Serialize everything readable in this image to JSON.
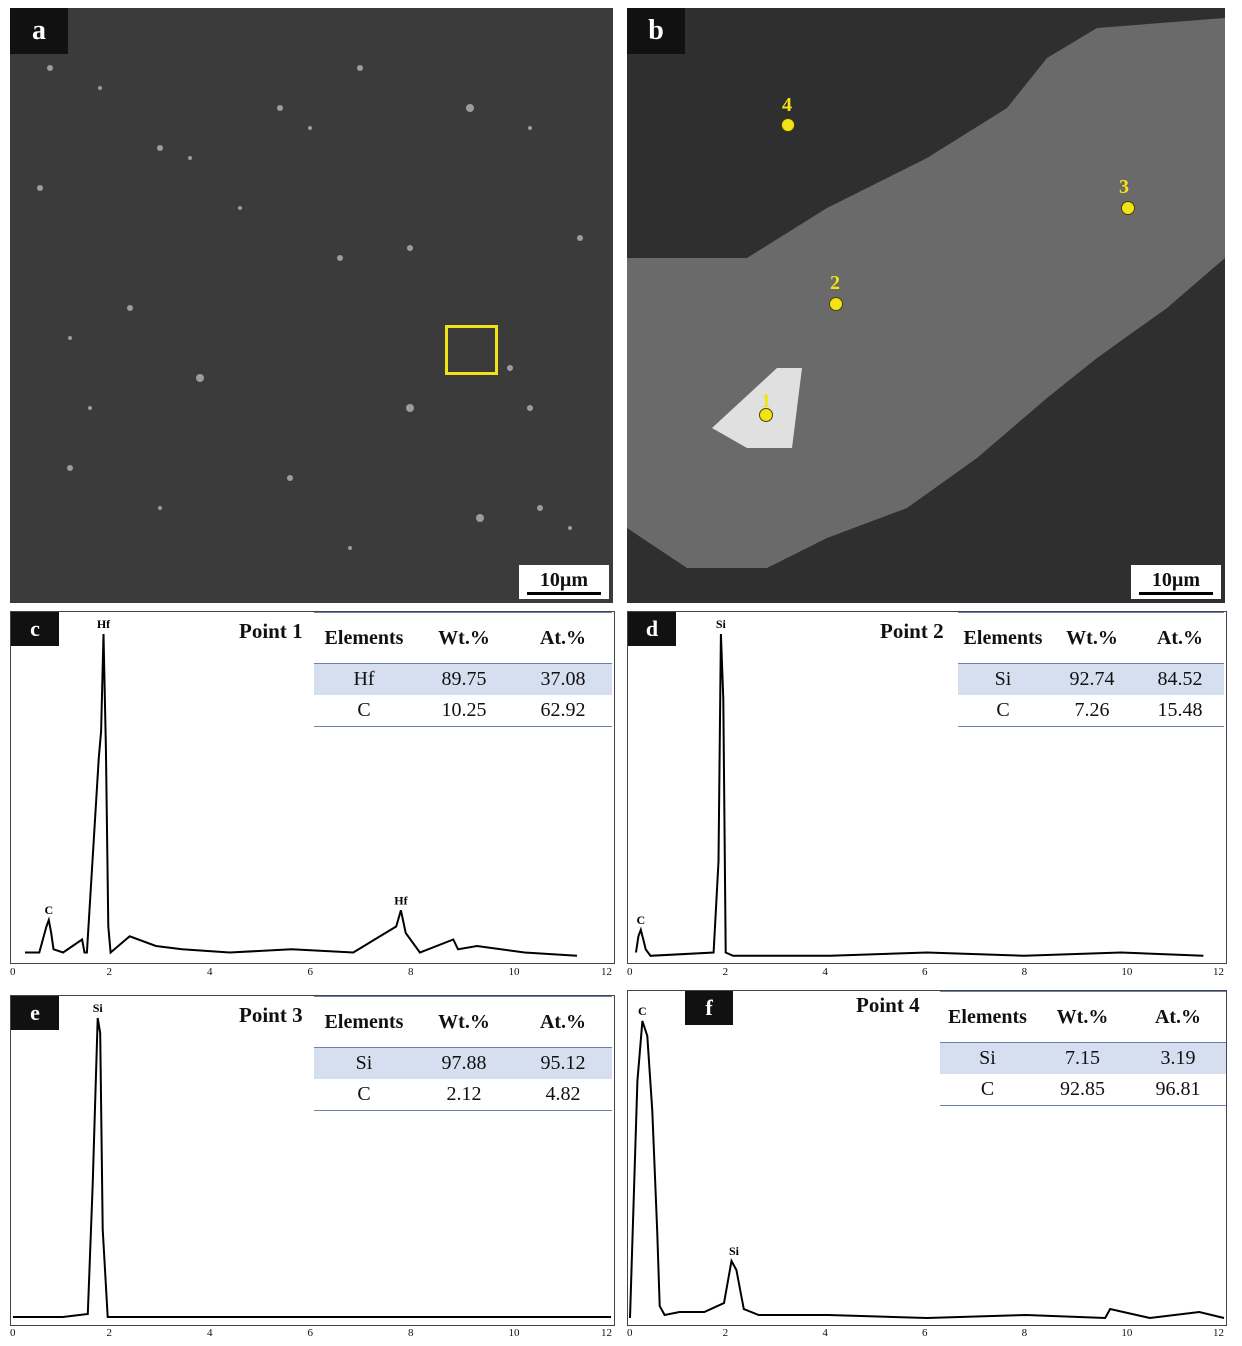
{
  "panels": {
    "a": {
      "letter": "a",
      "scale_label": "10µm"
    },
    "b": {
      "letter": "b",
      "scale_label": "10µm",
      "markers": [
        "1",
        "2",
        "3",
        "4"
      ]
    },
    "c": {
      "letter": "c",
      "point": "Point 1"
    },
    "d": {
      "letter": "d",
      "point": "Point 2"
    },
    "e": {
      "letter": "e",
      "point": "Point 3"
    },
    "f": {
      "letter": "f",
      "point": "Point 4"
    }
  },
  "table_headers": {
    "elements": "Elements",
    "wt": "Wt.%",
    "at": "At.%"
  },
  "tables": {
    "c": [
      {
        "el": "Hf",
        "wt": "89.75",
        "at": "37.08"
      },
      {
        "el": "C",
        "wt": "10.25",
        "at": "62.92"
      }
    ],
    "d": [
      {
        "el": "Si",
        "wt": "92.74",
        "at": "84.52"
      },
      {
        "el": "C",
        "wt": "7.26",
        "at": "15.48"
      }
    ],
    "e": [
      {
        "el": "Si",
        "wt": "97.88",
        "at": "95.12"
      },
      {
        "el": "C",
        "wt": "2.12",
        "at": "4.82"
      }
    ],
    "f": [
      {
        "el": "Si",
        "wt": "7.15",
        "at": "3.19"
      },
      {
        "el": "C",
        "wt": "92.85",
        "at": "96.81"
      }
    ]
  },
  "chart_data": [
    {
      "type": "line",
      "panel": "c",
      "xlim": [
        0,
        12
      ],
      "ticks": [
        "0",
        "2",
        "4",
        "6",
        "8",
        "10",
        "12"
      ],
      "peak_labels": [
        {
          "label": "C",
          "x": 0.5
        },
        {
          "label": "Hf",
          "x": 1.65
        },
        {
          "label": "Hf",
          "x": 7.9
        }
      ],
      "x": [
        0,
        0.3,
        0.45,
        0.5,
        0.55,
        0.6,
        0.8,
        1.2,
        1.25,
        1.3,
        1.55,
        1.6,
        1.65,
        1.7,
        1.75,
        1.8,
        2.2,
        2.75,
        3.3,
        4.3,
        5.6,
        6.9,
        7.8,
        7.9,
        8.0,
        8.3,
        9.0,
        9.1,
        9.5,
        10.5,
        11.6
      ],
      "y": [
        0.02,
        0.02,
        0.1,
        0.12,
        0.08,
        0.03,
        0.02,
        0.06,
        0.02,
        0.02,
        0.62,
        0.7,
        1.0,
        0.65,
        0.1,
        0.02,
        0.07,
        0.04,
        0.03,
        0.02,
        0.03,
        0.02,
        0.1,
        0.15,
        0.08,
        0.02,
        0.06,
        0.03,
        0.04,
        0.02,
        0.01
      ]
    },
    {
      "type": "line",
      "panel": "d",
      "xlim": [
        0,
        12
      ],
      "ticks": [
        "0",
        "2",
        "4",
        "6",
        "8",
        "10",
        "12"
      ],
      "peak_labels": [
        {
          "label": "C",
          "x": 0.1
        },
        {
          "label": "Si",
          "x": 1.75
        }
      ],
      "x": [
        0,
        0.05,
        0.1,
        0.15,
        0.2,
        0.3,
        1.6,
        1.7,
        1.75,
        1.8,
        1.85,
        2.0,
        4.0,
        6.0,
        8.0,
        10.0,
        11.7
      ],
      "y": [
        0.02,
        0.07,
        0.09,
        0.06,
        0.03,
        0.01,
        0.02,
        0.3,
        1.0,
        0.8,
        0.02,
        0.01,
        0.01,
        0.02,
        0.01,
        0.02,
        0.01
      ]
    },
    {
      "type": "line",
      "panel": "e",
      "xlim": [
        0,
        12
      ],
      "ticks": [
        "0",
        "2",
        "4",
        "6",
        "8",
        "10",
        "12"
      ],
      "peak_labels": [
        {
          "label": "Si",
          "x": 1.7
        }
      ],
      "x": [
        0,
        1.0,
        1.5,
        1.6,
        1.7,
        1.75,
        1.8,
        1.9,
        2.2,
        4.0,
        6.0,
        8.0,
        10.0,
        12.0
      ],
      "y": [
        0.01,
        0.01,
        0.02,
        0.45,
        1.0,
        0.95,
        0.3,
        0.01,
        0.01,
        0.01,
        0.01,
        0.01,
        0.01,
        0.01
      ]
    },
    {
      "type": "line",
      "panel": "f",
      "xlim": [
        0,
        12
      ],
      "ticks": [
        "0",
        "2",
        "4",
        "6",
        "8",
        "10",
        "12"
      ],
      "peak_labels": [
        {
          "label": "C",
          "x": 0.25
        },
        {
          "label": "Si",
          "x": 2.1
        }
      ],
      "x": [
        0,
        0.15,
        0.25,
        0.35,
        0.45,
        0.55,
        0.6,
        0.7,
        1.0,
        1.5,
        1.9,
        2.05,
        2.15,
        2.3,
        2.6,
        4.0,
        6.0,
        8.0,
        9.6,
        9.7,
        10.5,
        11.5,
        12.0
      ],
      "y": [
        0.01,
        0.8,
        1.0,
        0.95,
        0.7,
        0.3,
        0.05,
        0.02,
        0.03,
        0.03,
        0.06,
        0.2,
        0.17,
        0.04,
        0.02,
        0.02,
        0.01,
        0.02,
        0.01,
        0.04,
        0.01,
        0.03,
        0.01
      ]
    }
  ]
}
